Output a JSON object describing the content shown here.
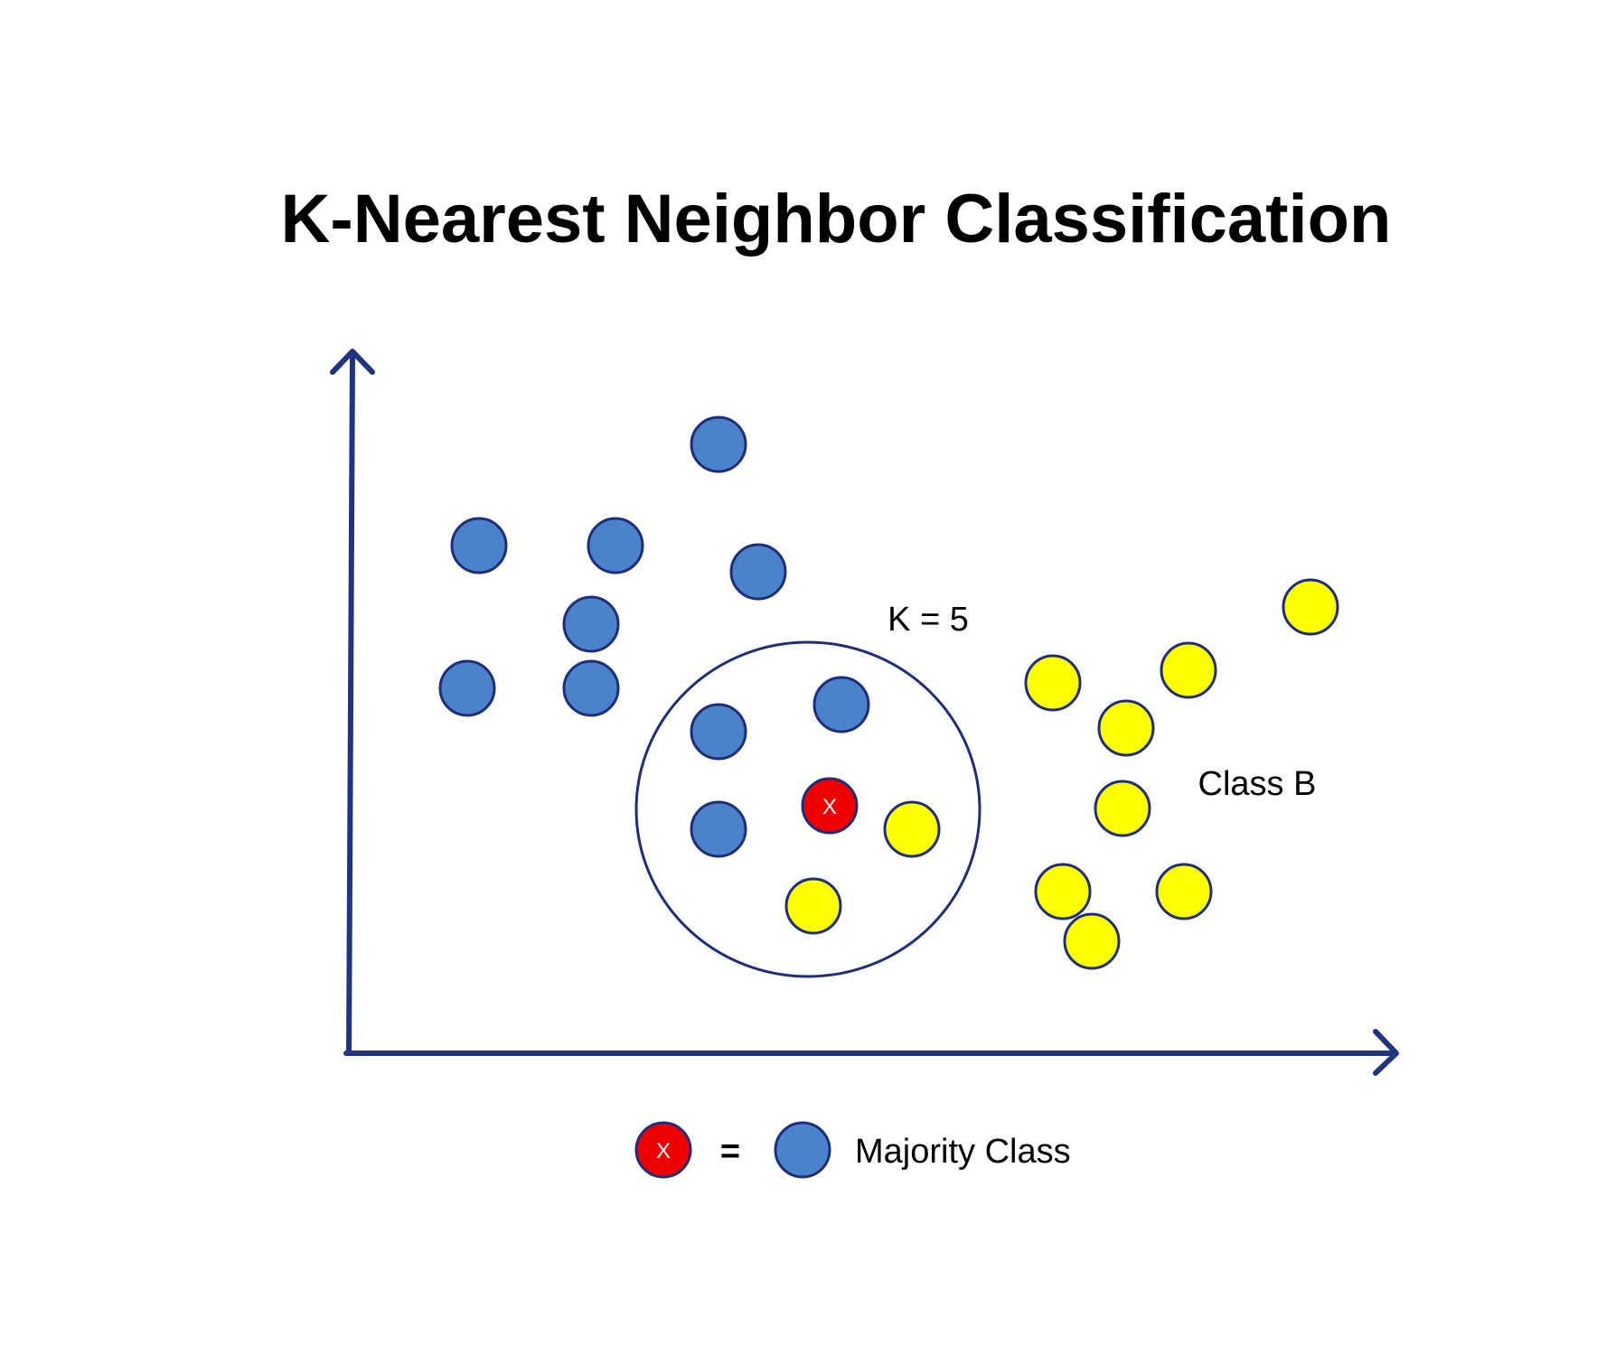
{
  "title": "K-Nearest Neighbor Classification",
  "k_label": "K = 5",
  "class_b_label": "Class B",
  "query_marker": "X",
  "legend": {
    "marker": "X",
    "equals": "=",
    "text": "Majority Class"
  },
  "colors": {
    "axis": "#21347f",
    "class_a_fill": "#4a83c9",
    "class_b_fill": "#ffff00",
    "query_fill": "#ee0000",
    "point_stroke": "#1f2d7a"
  }
}
